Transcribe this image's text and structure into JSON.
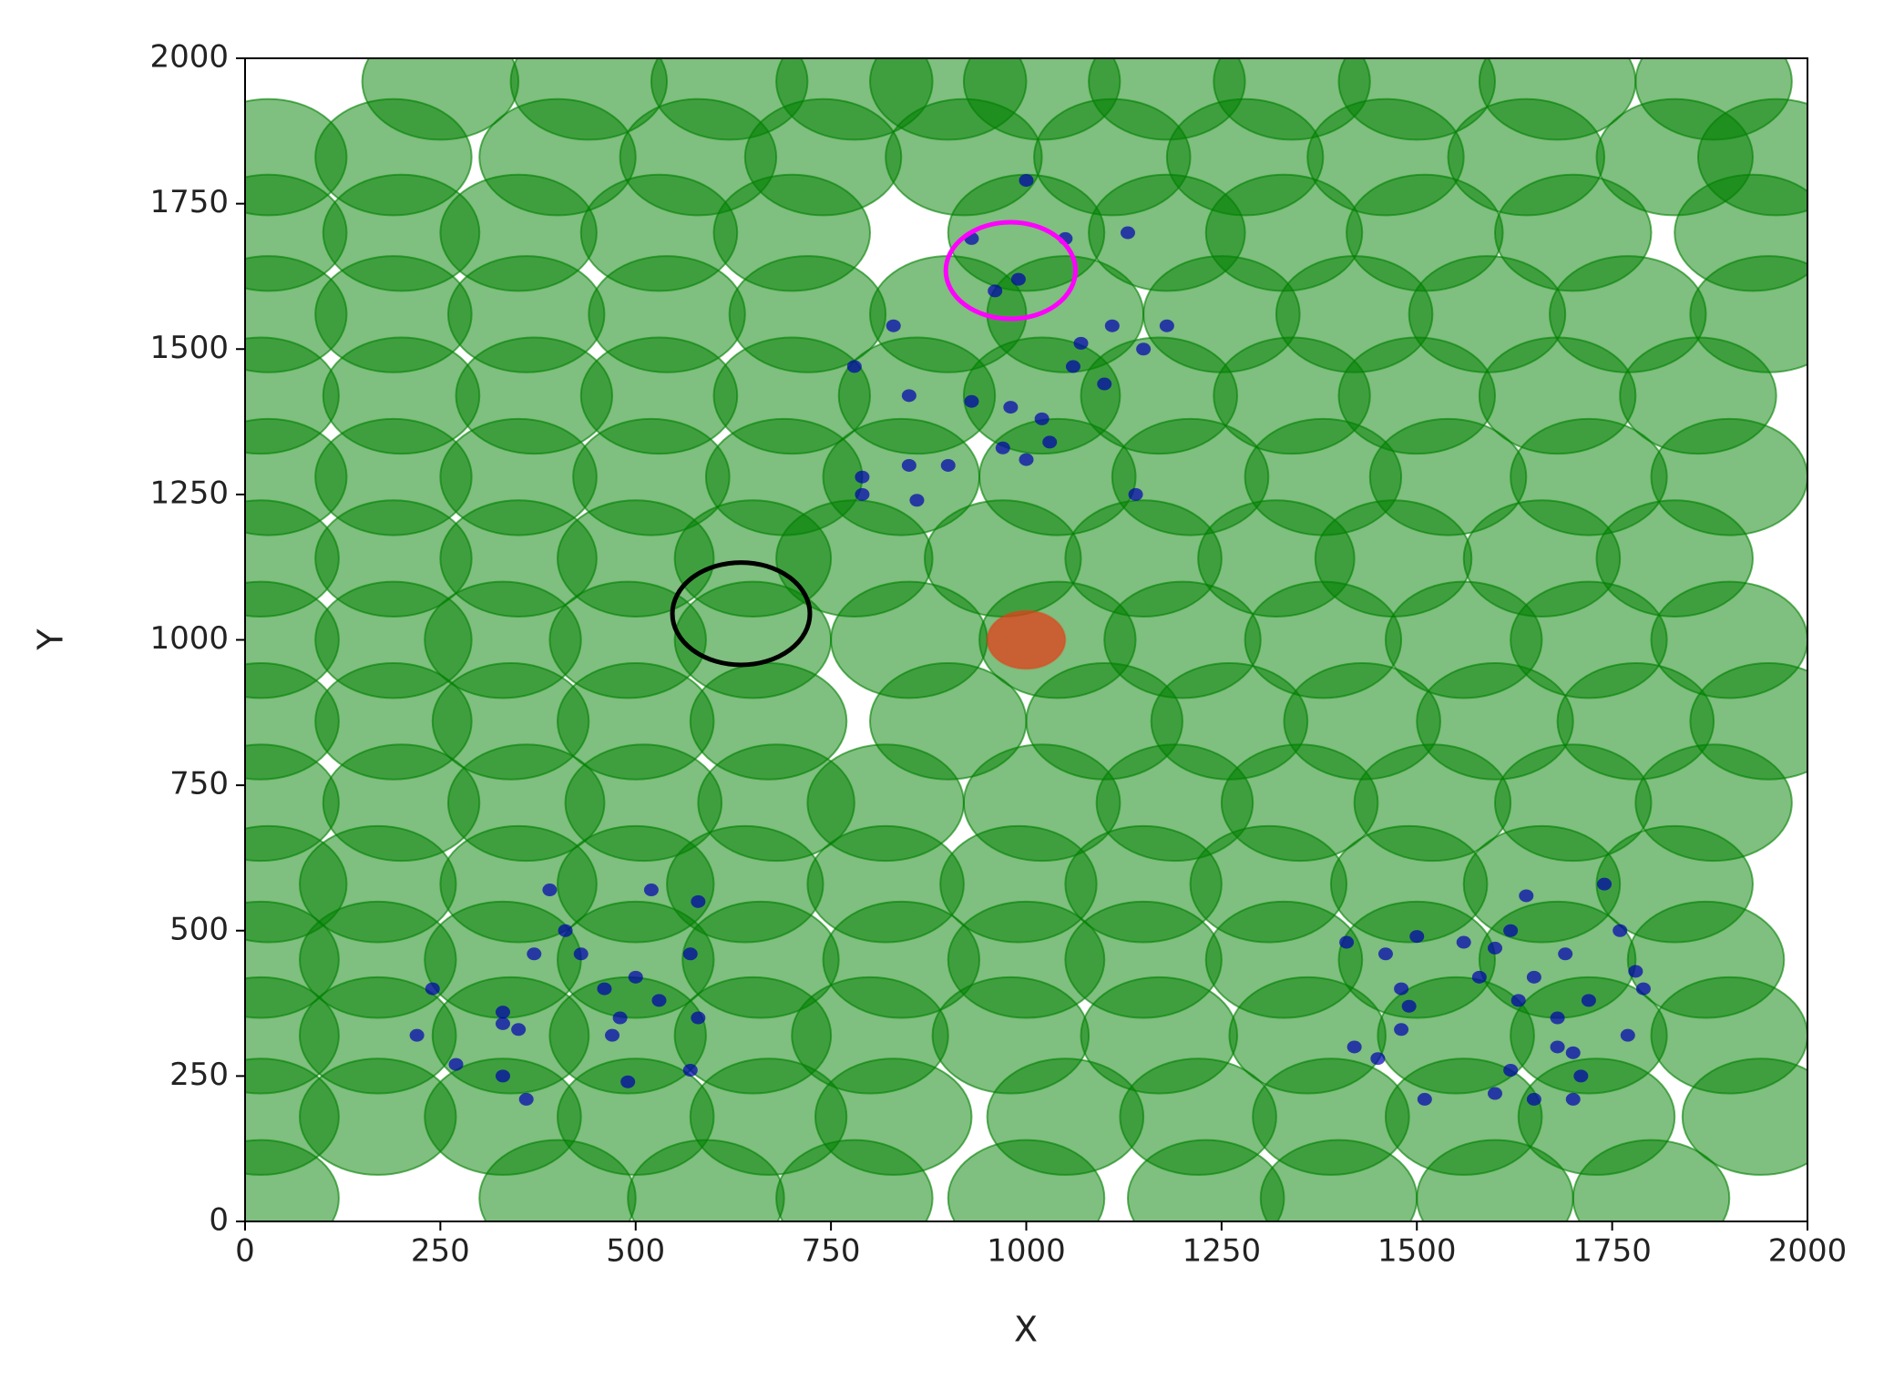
{
  "chart_data": {
    "type": "scatter",
    "xlabel": "X",
    "ylabel": "Y",
    "xlim": [
      0,
      2000
    ],
    "ylim": [
      0,
      2000
    ],
    "xticks": [
      0,
      250,
      500,
      750,
      1000,
      1250,
      1500,
      1750,
      2000
    ],
    "yticks": [
      0,
      250,
      500,
      750,
      1000,
      1250,
      1500,
      1750,
      2000
    ],
    "series": [
      {
        "color": "green",
        "radius": 100,
        "x": [
          250,
          440,
          620,
          780,
          900,
          1020,
          1180,
          1340,
          1500,
          1680,
          1880,
          30,
          190,
          400,
          580,
          740,
          920,
          1110,
          1280,
          1460,
          1640,
          1830,
          1960,
          30,
          200,
          350,
          530,
          700,
          1000,
          1180,
          1330,
          1510,
          1700,
          1930,
          30,
          190,
          360,
          540,
          720,
          900,
          1050,
          1250,
          1420,
          1590,
          1770,
          1950,
          20,
          200,
          370,
          530,
          700,
          860,
          1020,
          1170,
          1340,
          1500,
          1680,
          1860,
          30,
          190,
          350,
          520,
          690,
          840,
          1040,
          1210,
          1380,
          1540,
          1720,
          1900,
          20,
          190,
          350,
          500,
          650,
          780,
          970,
          1150,
          1320,
          1470,
          1660,
          1830,
          20,
          190,
          330,
          490,
          650,
          850,
          1040,
          1200,
          1380,
          1560,
          1720,
          1900,
          20,
          190,
          340,
          500,
          670,
          900,
          1100,
          1260,
          1430,
          1600,
          1780,
          1950,
          20,
          200,
          360,
          510,
          680,
          820,
          1020,
          1190,
          1350,
          1520,
          1700,
          1880,
          30,
          170,
          350,
          500,
          640,
          820,
          990,
          1150,
          1310,
          1490,
          1660,
          1830,
          20,
          170,
          330,
          500,
          660,
          840,
          1000,
          1150,
          1330,
          1500,
          1680,
          1870,
          20,
          170,
          340,
          490,
          650,
          800,
          980,
          1170,
          1360,
          1550,
          1720,
          1900,
          20,
          170,
          330,
          500,
          670,
          830,
          1050,
          1220,
          1390,
          1560,
          1730,
          1940,
          20,
          400,
          590,
          780,
          1000,
          1230,
          1400,
          1600,
          1800
        ],
        "y": [
          1960,
          1960,
          1960,
          1960,
          1960,
          1960,
          1960,
          1960,
          1960,
          1960,
          1960,
          1830,
          1830,
          1830,
          1830,
          1830,
          1830,
          1830,
          1830,
          1830,
          1830,
          1830,
          1830,
          1700,
          1700,
          1700,
          1700,
          1700,
          1700,
          1700,
          1700,
          1700,
          1700,
          1700,
          1560,
          1560,
          1560,
          1560,
          1560,
          1560,
          1560,
          1560,
          1560,
          1560,
          1560,
          1560,
          1420,
          1420,
          1420,
          1420,
          1420,
          1420,
          1420,
          1420,
          1420,
          1420,
          1420,
          1420,
          1280,
          1280,
          1280,
          1280,
          1280,
          1280,
          1280,
          1280,
          1280,
          1280,
          1280,
          1280,
          1140,
          1140,
          1140,
          1140,
          1140,
          1140,
          1140,
          1140,
          1140,
          1140,
          1140,
          1140,
          1000,
          1000,
          1000,
          1000,
          1000,
          1000,
          1000,
          1000,
          1000,
          1000,
          1000,
          1000,
          860,
          860,
          860,
          860,
          860,
          860,
          860,
          860,
          860,
          860,
          860,
          860,
          720,
          720,
          720,
          720,
          720,
          720,
          720,
          720,
          720,
          720,
          720,
          720,
          580,
          580,
          580,
          580,
          580,
          580,
          580,
          580,
          580,
          580,
          580,
          580,
          450,
          450,
          450,
          450,
          450,
          450,
          450,
          450,
          450,
          450,
          450,
          450,
          320,
          320,
          320,
          320,
          320,
          320,
          320,
          320,
          320,
          320,
          320,
          320,
          180,
          180,
          180,
          180,
          180,
          180,
          180,
          180,
          180,
          180,
          180,
          180,
          40,
          40,
          40,
          40,
          40,
          40,
          40,
          40,
          40
        ]
      },
      {
        "color": "#0000b0",
        "x": [
          1000,
          930,
          960,
          990,
          1050,
          1130,
          830,
          780,
          850,
          930,
          980,
          1100,
          1020,
          1030,
          970,
          1000,
          900,
          850,
          790,
          860,
          790,
          1070,
          1110,
          1150,
          1180,
          1140,
          1060,
          240,
          220,
          270,
          330,
          360,
          330,
          350,
          330,
          410,
          390,
          520,
          580,
          570,
          530,
          500,
          480,
          490,
          570,
          580,
          430,
          460,
          370,
          470,
          1410,
          1460,
          1500,
          1490,
          1480,
          1420,
          1450,
          1510,
          1480,
          1560,
          1600,
          1620,
          1640,
          1740,
          1760,
          1780,
          1790,
          1770,
          1720,
          1680,
          1690,
          1650,
          1630,
          1580,
          1600,
          1620,
          1650,
          1700,
          1680,
          1710,
          1700
        ],
        "y": [
          1790,
          1690,
          1600,
          1620,
          1690,
          1700,
          1540,
          1470,
          1420,
          1410,
          1400,
          1440,
          1380,
          1340,
          1330,
          1310,
          1300,
          1300,
          1280,
          1240,
          1250,
          1510,
          1540,
          1500,
          1540,
          1250,
          1470,
          400,
          320,
          270,
          250,
          210,
          360,
          330,
          340,
          500,
          570,
          570,
          550,
          460,
          380,
          420,
          350,
          240,
          260,
          350,
          460,
          400,
          460,
          320,
          480,
          460,
          490,
          370,
          330,
          300,
          280,
          210,
          400,
          480,
          470,
          500,
          560,
          580,
          500,
          430,
          400,
          320,
          380,
          350,
          460,
          420,
          380,
          420,
          220,
          260,
          210,
          290,
          300,
          250,
          210
        ]
      }
    ],
    "circles": [
      {
        "x": 635,
        "y": 1045,
        "radius": 88,
        "color": "black",
        "filled": false
      },
      {
        "x": 980,
        "y": 1635,
        "radius": 83,
        "color": "magenta",
        "filled": false
      },
      {
        "x": 1000,
        "y": 1000,
        "radius": 50,
        "color": "#e0401a",
        "filled": true
      }
    ]
  }
}
